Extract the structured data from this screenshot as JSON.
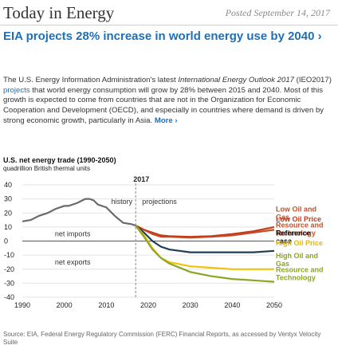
{
  "header": {
    "brand": "Today in Energy",
    "posted": "Posted September 14, 2017"
  },
  "article": {
    "headline": "EIA projects 28% increase in world energy use by 2040 ›",
    "intro_a": "The U.S. Energy Information Administration's latest ",
    "intro_title": "International Energy Outlook 2017",
    "intro_b": " (IEO2017) ",
    "intro_link": "projects",
    "intro_c": " that world energy consumption will grow by 28% between 2015 and 2040. Most of this growth is expected to come from countries that are not in the Organization for Economic Cooperation and Development (OECD), and especially in countries where demand is driven by strong economic growth, particularly in Asia. ",
    "more": "More ›"
  },
  "chart_data": {
    "type": "line",
    "title": "U.S. net energy trade (1990-2050)",
    "units": "quadrillion British thermal units",
    "ylim": [
      -40,
      40
    ],
    "xlim": [
      1990,
      2050
    ],
    "y_ticks": [
      "40",
      "30",
      "20",
      "10",
      "0",
      "-10",
      "-20",
      "-30",
      "-40"
    ],
    "x_ticks": [
      "1990",
      "2000",
      "2010",
      "2020",
      "2030",
      "2040",
      "2050"
    ],
    "divider_label": "2017",
    "history_label": "history",
    "projections_label": "projections",
    "net_imports_label": "net imports",
    "net_exports_label": "net exports",
    "history": {
      "color": "#6b6b6b",
      "x": [
        1990,
        1992,
        1994,
        1996,
        1998,
        2000,
        2001,
        2003,
        2005,
        2006,
        2007,
        2008,
        2010,
        2012,
        2014,
        2016,
        2017
      ],
      "y": [
        14,
        15,
        18,
        20,
        23,
        25,
        25,
        27,
        30,
        30,
        29,
        26,
        24,
        18,
        13,
        12,
        11
      ]
    },
    "series": [
      {
        "name": "Low Oil and Gas Resource and Technology",
        "color": "#c0522b",
        "x": [
          2017,
          2019,
          2021,
          2023,
          2025,
          2030,
          2035,
          2040,
          2045,
          2050
        ],
        "y": [
          11,
          8,
          5,
          3,
          3,
          2.5,
          3,
          4,
          6,
          8
        ]
      },
      {
        "name": "Low Oil Price",
        "color": "#c63b1c",
        "x": [
          2017,
          2019,
          2021,
          2023,
          2025,
          2030,
          2035,
          2040,
          2045,
          2050
        ],
        "y": [
          11,
          8,
          6,
          4,
          3.5,
          3,
          3.5,
          5,
          7,
          10
        ]
      },
      {
        "name": "Reference case",
        "color": "#1f3f57",
        "x": [
          2017,
          2019,
          2021,
          2023,
          2025,
          2030,
          2035,
          2040,
          2045,
          2050
        ],
        "y": [
          11,
          6,
          0,
          -4,
          -6,
          -8,
          -8,
          -8,
          -8,
          -7
        ]
      },
      {
        "name": "High Oil Price",
        "color": "#f2c20b",
        "x": [
          2017,
          2019,
          2021,
          2023,
          2025,
          2030,
          2035,
          2040,
          2045,
          2050
        ],
        "y": [
          11,
          4,
          -5,
          -12,
          -15,
          -18,
          -19,
          -20,
          -20,
          -20
        ]
      },
      {
        "name": "High Oil and Gas Resource and Technology",
        "color": "#8aa622",
        "x": [
          2017,
          2019,
          2021,
          2023,
          2025,
          2030,
          2035,
          2040,
          2045,
          2050
        ],
        "y": [
          11,
          3,
          -6,
          -12,
          -16,
          -22,
          -25,
          -27,
          -28,
          -29
        ]
      }
    ],
    "legend": [
      {
        "lines": [
          "Low Oil and",
          "Gas",
          "Resource and",
          "Technology"
        ],
        "color": "#c0522b",
        "label_y": 13
      },
      {
        "lines": [
          "Low Oil Price"
        ],
        "color": "#c63b1c",
        "label_y": 6
      },
      {
        "lines": [
          "Reference",
          "case"
        ],
        "color": "#111111",
        "label_y": -4
      },
      {
        "lines": [
          "High Oil Price"
        ],
        "color": "#e6b800",
        "label_y": -11
      },
      {
        "lines": [
          "High Oil and",
          "Gas"
        ],
        "color": "#8aa622",
        "label_y": -20
      },
      {
        "lines": [
          "Resource and",
          "Technology"
        ],
        "color": "#8aa622",
        "label_y": -30
      }
    ]
  },
  "source": "Source: EIA, Federal Energy Regulatory Commission (FERC) Financial Reports, as accessed by Ventyx Velocity Suite"
}
